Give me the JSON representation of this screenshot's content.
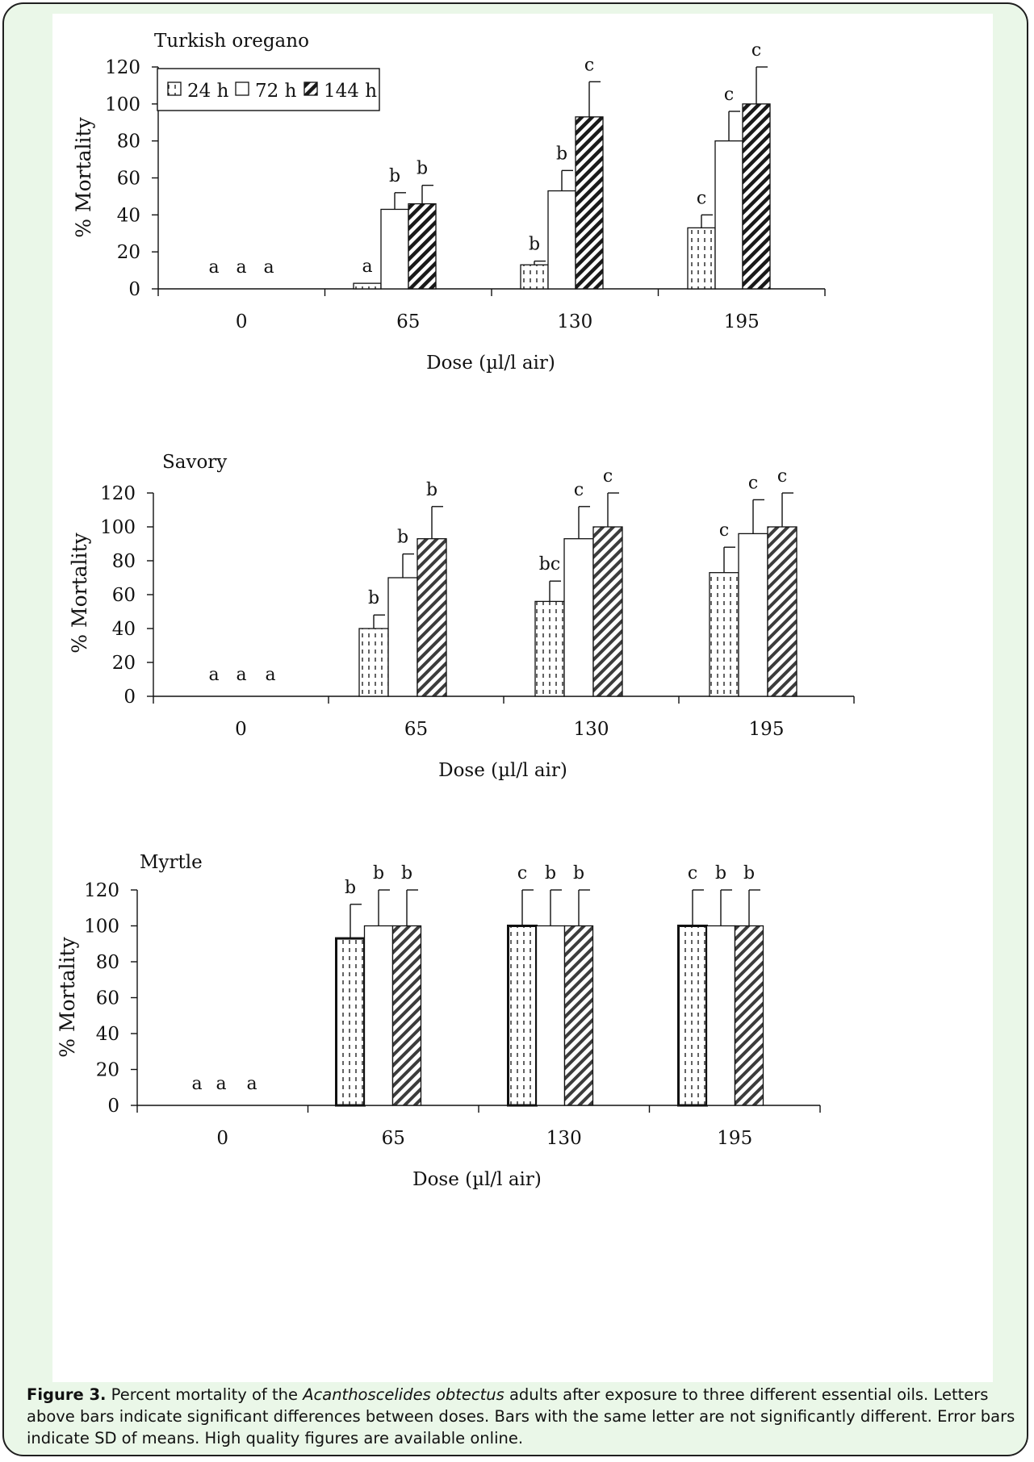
{
  "figure": {
    "caption": {
      "label": "Figure 3.",
      "text_before": " Percent mortality of the ",
      "species": "Acanthoscelides obtectus",
      "text_after": " adults after exposure to three different essential oils. Letters above bars indicate significant differences between doses. Bars with the same letter are not significantly different. Error bars indicate SD of means. High quality figures are available online."
    }
  },
  "legend": {
    "entries": [
      "24 h",
      "72 h",
      "144 h"
    ]
  },
  "colors": {
    "background": "#eaf7e8",
    "panel": "#ffffff",
    "ink": "#111111"
  },
  "chart_data": [
    {
      "type": "bar",
      "title": "Turkish oregano",
      "xlabel": "Dose (µl/l air)",
      "ylabel": "% Mortality",
      "categories": [
        "0",
        "65",
        "130",
        "195"
      ],
      "ylim": [
        0,
        120
      ],
      "yticks": [
        "0",
        "20",
        "40",
        "60",
        "80",
        "100",
        "120"
      ],
      "legend": "top-left",
      "series": [
        {
          "name": "24 h",
          "values": [
            0,
            3,
            13,
            33
          ],
          "sd": [
            0,
            0,
            2,
            7
          ],
          "letters": [
            "a",
            "a",
            "b",
            "c"
          ]
        },
        {
          "name": "72 h",
          "values": [
            0,
            43,
            53,
            80
          ],
          "sd": [
            0,
            9,
            11,
            16
          ],
          "letters": [
            "a",
            "b",
            "b",
            "c"
          ]
        },
        {
          "name": "144 h",
          "values": [
            0,
            46,
            93,
            100
          ],
          "sd": [
            0,
            10,
            19,
            20
          ],
          "letters": [
            "a",
            "b",
            "c",
            "c"
          ]
        }
      ]
    },
    {
      "type": "bar",
      "title": "Savory",
      "xlabel": "Dose (µl/l air)",
      "ylabel": "% Mortality",
      "categories": [
        "0",
        "65",
        "130",
        "195"
      ],
      "ylim": [
        0,
        120
      ],
      "yticks": [
        "0",
        "20",
        "40",
        "60",
        "80",
        "100",
        "120"
      ],
      "series": [
        {
          "name": "24 h",
          "values": [
            0,
            40,
            56,
            73
          ],
          "sd": [
            0,
            8,
            12,
            15
          ],
          "letters": [
            "a",
            "b",
            "bc",
            "c"
          ]
        },
        {
          "name": "72 h",
          "values": [
            0,
            70,
            93,
            96
          ],
          "sd": [
            0,
            14,
            19,
            20
          ],
          "letters": [
            "a",
            "b",
            "c",
            "c"
          ]
        },
        {
          "name": "144 h",
          "values": [
            0,
            93,
            100,
            100
          ],
          "sd": [
            0,
            19,
            20,
            20
          ],
          "letters": [
            "a",
            "b",
            "c",
            "c"
          ]
        }
      ]
    },
    {
      "type": "bar",
      "title": "Myrtle",
      "xlabel": "Dose (µl/l air)",
      "ylabel": "% Mortality",
      "categories": [
        "0",
        "65",
        "130",
        "195"
      ],
      "ylim": [
        0,
        120
      ],
      "yticks": [
        "0",
        "20",
        "40",
        "60",
        "80",
        "100",
        "120"
      ],
      "series": [
        {
          "name": "24 h",
          "values": [
            0,
            93,
            100,
            100
          ],
          "sd": [
            0,
            19,
            20,
            20
          ],
          "letters": [
            "a",
            "b",
            "c",
            "c"
          ]
        },
        {
          "name": "72 h",
          "values": [
            0,
            100,
            100,
            100
          ],
          "sd": [
            0,
            20,
            20,
            20
          ],
          "letters": [
            "a",
            "b",
            "b",
            "b"
          ]
        },
        {
          "name": "144 h",
          "values": [
            0,
            100,
            100,
            100
          ],
          "sd": [
            0,
            20,
            20,
            20
          ],
          "letters": [
            "a",
            "b",
            "b",
            "b"
          ]
        }
      ]
    }
  ]
}
